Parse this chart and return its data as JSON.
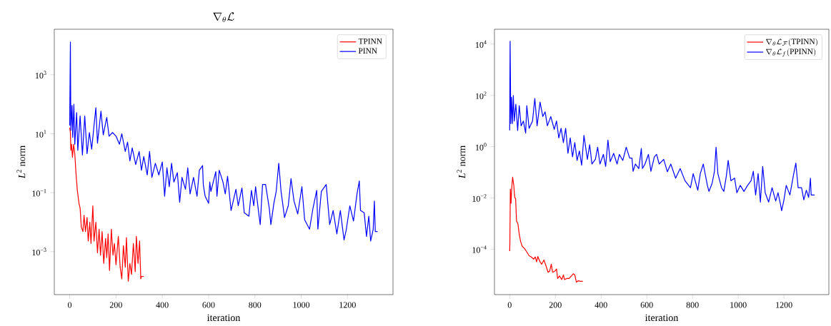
{
  "chart_data": [
    {
      "type": "line",
      "title": "\\nabla_{\\theta}\\mathcal{L}",
      "xlabel": "iteration",
      "ylabel": "*L*$^{2}$ norm",
      "log": true,
      "legend": "top right",
      "xlim": [
        -66.5,
        1396.5
      ],
      "xticks": [
        0,
        200,
        400,
        600,
        800,
        1000,
        1200
      ],
      "ylim": [
        3.5e-05,
        35000.0
      ],
      "yticks": [
        {
          "value": 0.001,
          "label": "10$^{−3}$"
        },
        {
          "value": 0.1,
          "label": "10$^{−1}$"
        },
        {
          "value": 10,
          "label": "10$^{1}$"
        },
        {
          "value": 1000,
          "label": "10$^{3}$"
        }
      ],
      "series": [
        {
          "name": "TPINN",
          "color": "#ff0000",
          "x": [
            0,
            3,
            5,
            8,
            12,
            17,
            22,
            27,
            33,
            40,
            45,
            50,
            57,
            62,
            68,
            75,
            80,
            87,
            92,
            100,
            105,
            113,
            120,
            127,
            133,
            140,
            147,
            155,
            160,
            166,
            172,
            180,
            187,
            193,
            200,
            210,
            218,
            225,
            232,
            240,
            245,
            253,
            260,
            267,
            275,
            283,
            288,
            295,
            302,
            307,
            310,
            320
          ],
          "values": [
            16,
            11,
            2.75,
            4.4,
            1.6,
            4.4,
            2.1,
            0.48,
            0.12,
            0.044,
            0.03,
            0.0069,
            0.0048,
            0.017,
            0.0048,
            0.0145,
            0.0023,
            0.01,
            0.0019,
            0.036,
            0.0023,
            0.01,
            0.00091,
            0.0058,
            0.00076,
            0.0048,
            0.0004,
            0.0028,
            0.00063,
            0.004,
            0.00023,
            0.0058,
            0.00076,
            0.0019,
            0.00036,
            0.0033,
            0.0003,
            0.00012,
            0.0016,
            0.0003,
            0.003,
            0.0001,
            0.0004,
            0.00017,
            0.0019,
            0.00021,
            0.0033,
            0.0004,
            0.0023,
            0.00012,
            0.000145,
            0.000145
          ]
        },
        {
          "name": "PINN",
          "color": "#0000ff",
          "x": [
            0,
            3,
            5,
            10,
            13,
            18,
            22,
            30,
            35,
            45,
            55,
            65,
            75,
            85,
            95,
            105,
            113,
            120,
            135,
            145,
            160,
            170,
            185,
            200,
            215,
            225,
            240,
            250,
            260,
            270,
            285,
            300,
            310,
            320,
            335,
            345,
            355,
            370,
            385,
            400,
            410,
            420,
            430,
            440,
            450,
            465,
            475,
            485,
            500,
            510,
            520,
            535,
            550,
            560,
            574,
            577,
            585,
            600,
            605,
            610,
            631,
            636,
            646,
            662,
            672,
            682,
            697,
            718,
            728,
            744,
            754,
            774,
            785,
            795,
            803,
            815,
            823,
            833,
            846,
            862,
            869,
            882,
            892,
            903,
            913,
            928,
            944,
            956,
            969,
            985,
            1003,
            1015,
            1036,
            1051,
            1067,
            1072,
            1087,
            1108,
            1123,
            1138,
            1154,
            1169,
            1185,
            1195,
            1210,
            1226,
            1241,
            1251,
            1256,
            1272,
            1282,
            1292,
            1300,
            1311,
            1316,
            1320,
            1330
          ],
          "values": [
            19,
            13000,
            13,
            91,
            7.6,
            100,
            4.4,
            52,
            2.75,
            40,
            1.9,
            40,
            2.1,
            11,
            3,
            19,
            76,
            4.8,
            58,
            9.1,
            36,
            8.3,
            11,
            8.3,
            4.4,
            10,
            2.5,
            5.2,
            1.2,
            3.3,
            0.9,
            2.5,
            0.58,
            1.7,
            0.4,
            2.5,
            0.33,
            1,
            0.4,
            1.1,
            0.076,
            0.7,
            0.16,
            1,
            0.23,
            0.48,
            0.048,
            0.33,
            0.13,
            0.7,
            0.091,
            0.33,
            0.076,
            0.58,
            0.83,
            0.19,
            0.076,
            0.044,
            0.23,
            0.11,
            0.52,
            0.076,
            0.58,
            0.23,
            0.091,
            0.36,
            0.025,
            0.13,
            0.036,
            0.145,
            0.021,
            0.016,
            0.12,
            0.036,
            0.16,
            0.025,
            0.0083,
            0.19,
            0.19,
            0.03,
            0.0083,
            0.044,
            0.11,
            1.0,
            0.11,
            0.0145,
            0.036,
            0.3,
            0.052,
            0.019,
            0.16,
            0.012,
            0.0058,
            0.03,
            0.12,
            0.0058,
            0.11,
            0.19,
            0.0083,
            0.025,
            0.004,
            0.025,
            0.0025,
            0.0058,
            0.036,
            0.011,
            0.091,
            0.25,
            0.025,
            0.021,
            0.0033,
            0.016,
            0.0023,
            0.0058,
            0.052,
            0.0048,
            0.0048
          ]
        }
      ]
    },
    {
      "type": "line",
      "xlabel": "iteration",
      "ylabel": "*L*$^{2}$ norm",
      "log": true,
      "legend": "top right",
      "xlim": [
        -66.5,
        1396.5
      ],
      "xticks": [
        0,
        200,
        400,
        600,
        800,
        1000,
        1200
      ],
      "ylim": [
        1.7e-06,
        38000.0
      ],
      "yticks": [
        {
          "value": 0.0001,
          "label": "10$^{−4}$"
        },
        {
          "value": 0.01,
          "label": "10$^{−2}$"
        },
        {
          "value": 1,
          "label": "10$^{0}$"
        },
        {
          "value": 100,
          "label": "10$^{2}$"
        },
        {
          "value": 10000,
          "label": "10$^{4}$"
        }
      ],
      "series": [
        {
          "name": "\\nabla_{\\theta}\\mathcal{L}_{\\mathcal{F}}\\mathrm{(TPINN)}",
          "color": "#ff0000",
          "x": [
            0,
            1,
            3,
            6,
            9,
            13,
            18,
            22,
            26,
            30,
            36,
            42,
            48,
            55,
            65,
            75,
            85,
            95,
            105,
            112,
            118,
            123,
            133,
            140,
            150,
            160,
            168,
            175,
            182,
            188,
            198,
            205,
            210,
            218,
            228,
            235,
            240,
            250,
            260,
            270,
            278,
            285,
            292,
            300,
            310,
            320
          ],
          "values": [
            8.5e-05,
            0.00018,
            0.022,
            0.0062,
            0.025,
            0.065,
            0.031,
            0.0105,
            0.0095,
            0.00126,
            0.001,
            0.00038,
            0.0002,
            0.00013,
            0.000107,
            7.8e-05,
            5.6e-05,
            5e-05,
            4.1e-05,
            5e-05,
            3.2e-05,
            5.2e-05,
            3.2e-05,
            2.6e-05,
            3.8e-05,
            2.1e-05,
            1.26e-05,
            1.4e-05,
            2.6e-05,
            1.26e-05,
            1.4e-05,
            1.7e-05,
            7.2e-06,
            9.1e-06,
            6.6e-06,
            1e-05,
            6.6e-06,
            7.2e-06,
            7.2e-06,
            9.1e-06,
            1.1e-05,
            1e-05,
            5.2e-06,
            5.9e-06,
            5.6e-06,
            5.6e-06
          ]
        },
        {
          "name": "\\nabla_{\\theta}\\mathcal{L}_{f}\\mathrm{(PPINN)}",
          "color": "#0000ff",
          "x": [
            0,
            2,
            5,
            8,
            12,
            16,
            20,
            27,
            35,
            42,
            50,
            60,
            70,
            75,
            85,
            100,
            110,
            120,
            133,
            145,
            155,
            165,
            180,
            195,
            205,
            215,
            225,
            235,
            245,
            255,
            265,
            275,
            285,
            295,
            305,
            315,
            325,
            340,
            350,
            360,
            375,
            385,
            395,
            410,
            420,
            430,
            440,
            455,
            470,
            480,
            495,
            510,
            525,
            535,
            540,
            550,
            565,
            576,
            581,
            592,
            607,
            618,
            633,
            643,
            654,
            674,
            690,
            705,
            726,
            746,
            767,
            791,
            803,
            823,
            834,
            847,
            865,
            872,
            886,
            896,
            903,
            911,
            927,
            937,
            948,
            956,
            968,
            984,
            994,
            1009,
            1025,
            1041,
            1056,
            1066,
            1076,
            1087,
            1097,
            1107,
            1118,
            1133,
            1148,
            1164,
            1174,
            1185,
            1190,
            1200,
            1210,
            1226,
            1241,
            1252,
            1262,
            1277,
            1287,
            1298,
            1308,
            1316,
            1319,
            1334
          ],
          "values": [
            4.3,
            13000,
            8,
            85,
            8,
            100,
            10,
            45,
            4.3,
            40,
            6.5,
            10,
            3.4,
            40,
            5.2,
            10,
            76,
            6.5,
            55,
            15,
            23,
            6.5,
            15,
            4.7,
            10,
            2.2,
            5.2,
            1.45,
            5.2,
            0.55,
            2.2,
            0.4,
            1.45,
            0.29,
            0.68,
            0.19,
            2.75,
            0.32,
            1.2,
            0.21,
            0.32,
            0.95,
            0.21,
            0.5,
            0.17,
            1.8,
            0.26,
            0.55,
            0.21,
            0.5,
            0.29,
            0.95,
            0.36,
            0.36,
            0.11,
            0.21,
            0.14,
            0.85,
            0.14,
            0.21,
            0.5,
            0.11,
            0.4,
            0.5,
            0.21,
            0.32,
            0.105,
            0.21,
            0.059,
            0.14,
            0.047,
            0.025,
            0.089,
            0.02,
            0.089,
            0.21,
            0.031,
            0.018,
            0.038,
            0.11,
            0.95,
            0.089,
            0.025,
            0.018,
            0.072,
            0.29,
            0.047,
            0.059,
            0.016,
            0.031,
            0.018,
            0.031,
            0.047,
            0.11,
            0.013,
            0.089,
            0.0069,
            0.17,
            0.016,
            0.0069,
            0.025,
            0.0076,
            0.016,
            0.0056,
            0.0032,
            0.0085,
            0.031,
            0.013,
            0.072,
            0.23,
            0.025,
            0.025,
            0.0085,
            0.02,
            0.0105,
            0.059,
            0.013,
            0.013
          ]
        }
      ]
    }
  ]
}
